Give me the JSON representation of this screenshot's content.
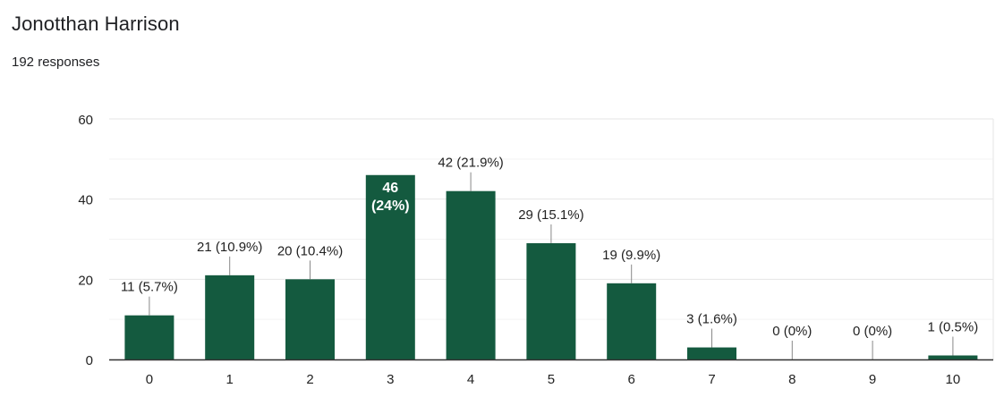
{
  "question": {
    "title": "Jonotthan Harrison",
    "responses_text": "192 responses"
  },
  "colors": {
    "bar": "#145a3f",
    "grid": "#ebebeb",
    "axis": "#333333",
    "text": "#222222",
    "inner_label": "#ffffff"
  },
  "chart_data": {
    "type": "bar",
    "categories": [
      "0",
      "1",
      "2",
      "3",
      "4",
      "5",
      "6",
      "7",
      "8",
      "9",
      "10"
    ],
    "values": [
      11,
      21,
      20,
      46,
      42,
      29,
      19,
      3,
      0,
      0,
      1
    ],
    "data_labels": [
      "11 (5.7%)",
      "21 (10.9%)",
      "20 (10.4%)",
      "46 (24%)",
      "42 (21.9%)",
      "29 (15.1%)",
      "19 (9.9%)",
      "3 (1.6%)",
      "0 (0%)",
      "0 (0%)",
      "1 (0.5%)"
    ],
    "inside_label_index": 3,
    "ylim": [
      0,
      60
    ],
    "yticks": [
      0,
      20,
      40,
      60
    ],
    "grid": true,
    "title": "",
    "xlabel": "",
    "ylabel": ""
  }
}
